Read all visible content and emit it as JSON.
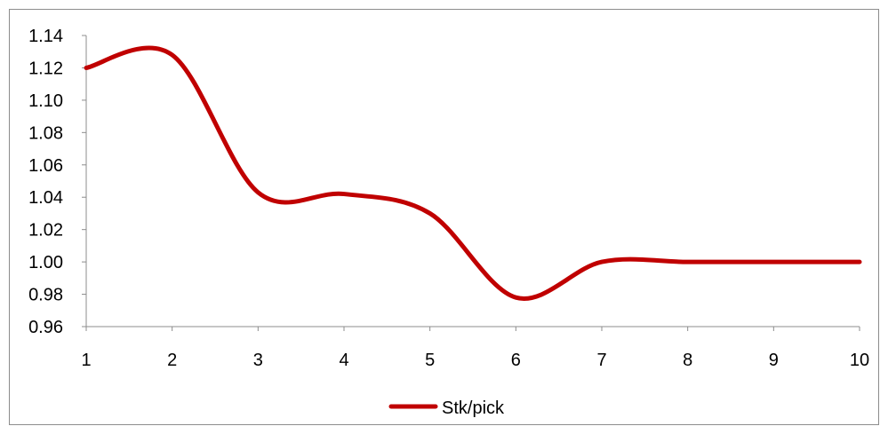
{
  "chart_data": {
    "type": "line",
    "title": "",
    "xlabel": "",
    "ylabel": "",
    "x": [
      1,
      2,
      3,
      4,
      5,
      6,
      7,
      8,
      9,
      10
    ],
    "x_tick_labels": [
      "1",
      "2",
      "3",
      "4",
      "5",
      "6",
      "7",
      "8",
      "9",
      "10"
    ],
    "y_tick_labels": [
      "1.14",
      "1.12",
      "1.10",
      "1.08",
      "1.06",
      "1.04",
      "1.02",
      "1.00",
      "0.98",
      "0.96"
    ],
    "ylim": [
      0.96,
      1.14
    ],
    "y_ticks": [
      0.96,
      0.98,
      1.0,
      1.02,
      1.04,
      1.06,
      1.08,
      1.1,
      1.12,
      1.14
    ],
    "grid": false,
    "smooth": true,
    "series": [
      {
        "name": "Stk/pick",
        "color": "#c00000",
        "values": [
          1.12,
          1.128,
          1.043,
          1.042,
          1.03,
          0.978,
          1.0,
          1.0,
          1.0,
          1.0
        ]
      }
    ],
    "legend": {
      "position": "bottom-center",
      "label": "Stk/pick"
    }
  }
}
